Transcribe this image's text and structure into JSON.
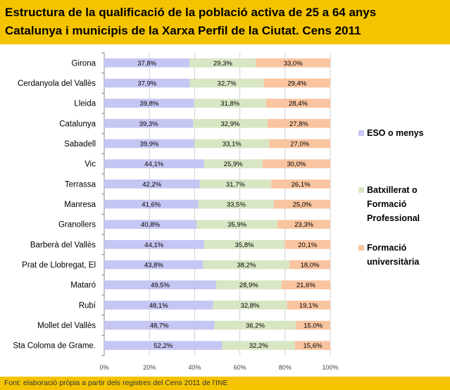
{
  "title_lines": [
    "Estructura de la qualificació de la població activa de 25 a 64 anys",
    "Catalunya i municipis de la Xarxa Perfil de la Ciutat. Cens 2011"
  ],
  "footer": "Font: elaboració pròpia a partir dels registres del Cens 2011 de l'INE",
  "chart_data": {
    "type": "bar",
    "orientation": "horizontal",
    "stacked": true,
    "title": "Estructura de la qualificació de la població activa de 25 a 64 anys Catalunya i municipis de la Xarxa Perfil de la Ciutat. Cens 2011",
    "categories": [
      "Girona",
      "Cerdanyola del Vallès",
      "Lleida",
      "Catalunya",
      "Sabadell",
      "Vic",
      "Terrassa",
      "Manresa",
      "Granollers",
      "Barberà del Vallès",
      "Prat de Llobregat, El",
      "Mataró",
      "Rubí",
      "Mollet del Vallès",
      "Sta Coloma de Grame."
    ],
    "series": [
      {
        "name": "ESO o menys",
        "legend_lines": [
          "ESO o menys"
        ],
        "color": "#c6c6f4",
        "values": [
          37.8,
          37.9,
          39.8,
          39.3,
          39.9,
          44.1,
          42.2,
          41.6,
          40.8,
          44.1,
          43.8,
          49.5,
          48.1,
          48.7,
          52.2
        ],
        "labels": [
          "37,8%",
          "37,9%",
          "39,8%",
          "39,3%",
          "39,9%",
          "44,1%",
          "42,2%",
          "41,6%",
          "40,8%",
          "44,1%",
          "43,8%",
          "49,5%",
          "48,1%",
          "48,7%",
          "52,2%"
        ]
      },
      {
        "name": "Batxillerat o Formació Professional",
        "legend_lines": [
          "Batxillerat o",
          "Formació",
          "Professional"
        ],
        "color": "#d8e6c4",
        "values": [
          29.3,
          32.7,
          31.8,
          32.9,
          33.1,
          25.9,
          31.7,
          33.5,
          35.9,
          35.8,
          38.2,
          28.9,
          32.8,
          36.2,
          32.2
        ],
        "labels": [
          "29,3%",
          "32,7%",
          "31,8%",
          "32,9%",
          "33,1%",
          "25,9%",
          "31,7%",
          "33,5%",
          "35,9%",
          "35,8%",
          "38,2%",
          "28,9%",
          "32,8%",
          "36,2%",
          "32,2%"
        ]
      },
      {
        "name": "Formació universitària",
        "legend_lines": [
          "Formació",
          "universitària"
        ],
        "color": "#f9c4a0",
        "values": [
          33.0,
          29.4,
          28.4,
          27.8,
          27.0,
          30.0,
          26.1,
          25.0,
          23.3,
          20.1,
          18.0,
          21.6,
          19.1,
          15.0,
          15.6
        ],
        "labels": [
          "33,0%",
          "29,4%",
          "28,4%",
          "27,8%",
          "27,0%",
          "30,0%",
          "26,1%",
          "25,0%",
          "23,3%",
          "20,1%",
          "18,0%",
          "21,6%",
          "19,1%",
          "15,0%",
          "15,6%"
        ]
      }
    ],
    "xlim": [
      0,
      100
    ],
    "xticks": [
      "0%",
      "20%",
      "40%",
      "60%",
      "80%",
      "100%"
    ],
    "grid": true,
    "legend_position": "right"
  }
}
